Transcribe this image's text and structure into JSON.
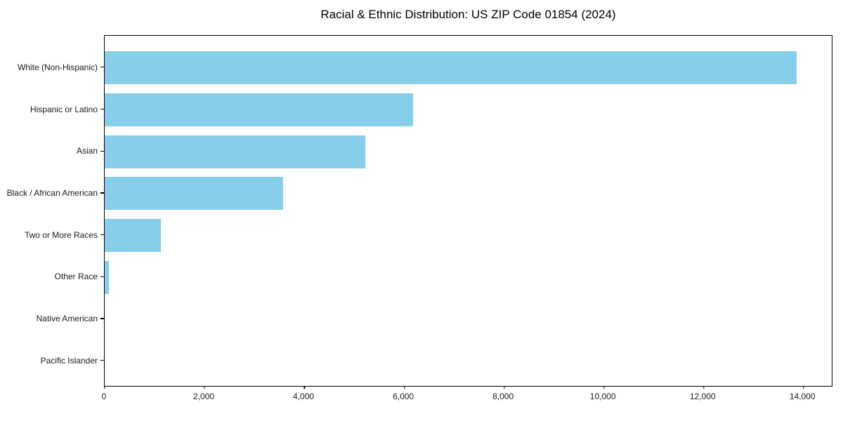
{
  "chart_data": {
    "type": "bar",
    "orientation": "horizontal",
    "title": "Racial & Ethnic Distribution: US ZIP Code 01854 (2024)",
    "xlabel": "",
    "ylabel": "",
    "categories": [
      "White (Non-Hispanic)",
      "Hispanic or Latino",
      "Asian",
      "Black / African American",
      "Two or More Races",
      "Other Race",
      "Native American",
      "Pacific Islander"
    ],
    "values": [
      13860,
      6170,
      5220,
      3570,
      1130,
      90,
      0,
      0
    ],
    "xlim": [
      0,
      14560
    ],
    "x_ticks": [
      0,
      2000,
      4000,
      6000,
      8000,
      10000,
      12000,
      14000
    ],
    "x_tick_labels": [
      "0",
      "2,000",
      "4,000",
      "6,000",
      "8,000",
      "10,000",
      "12,000",
      "14,000"
    ],
    "bar_color": "#87CEEB",
    "axis_color": "#000000",
    "tick_label_color": "#1a1a1a",
    "grid": false,
    "legend": null
  }
}
